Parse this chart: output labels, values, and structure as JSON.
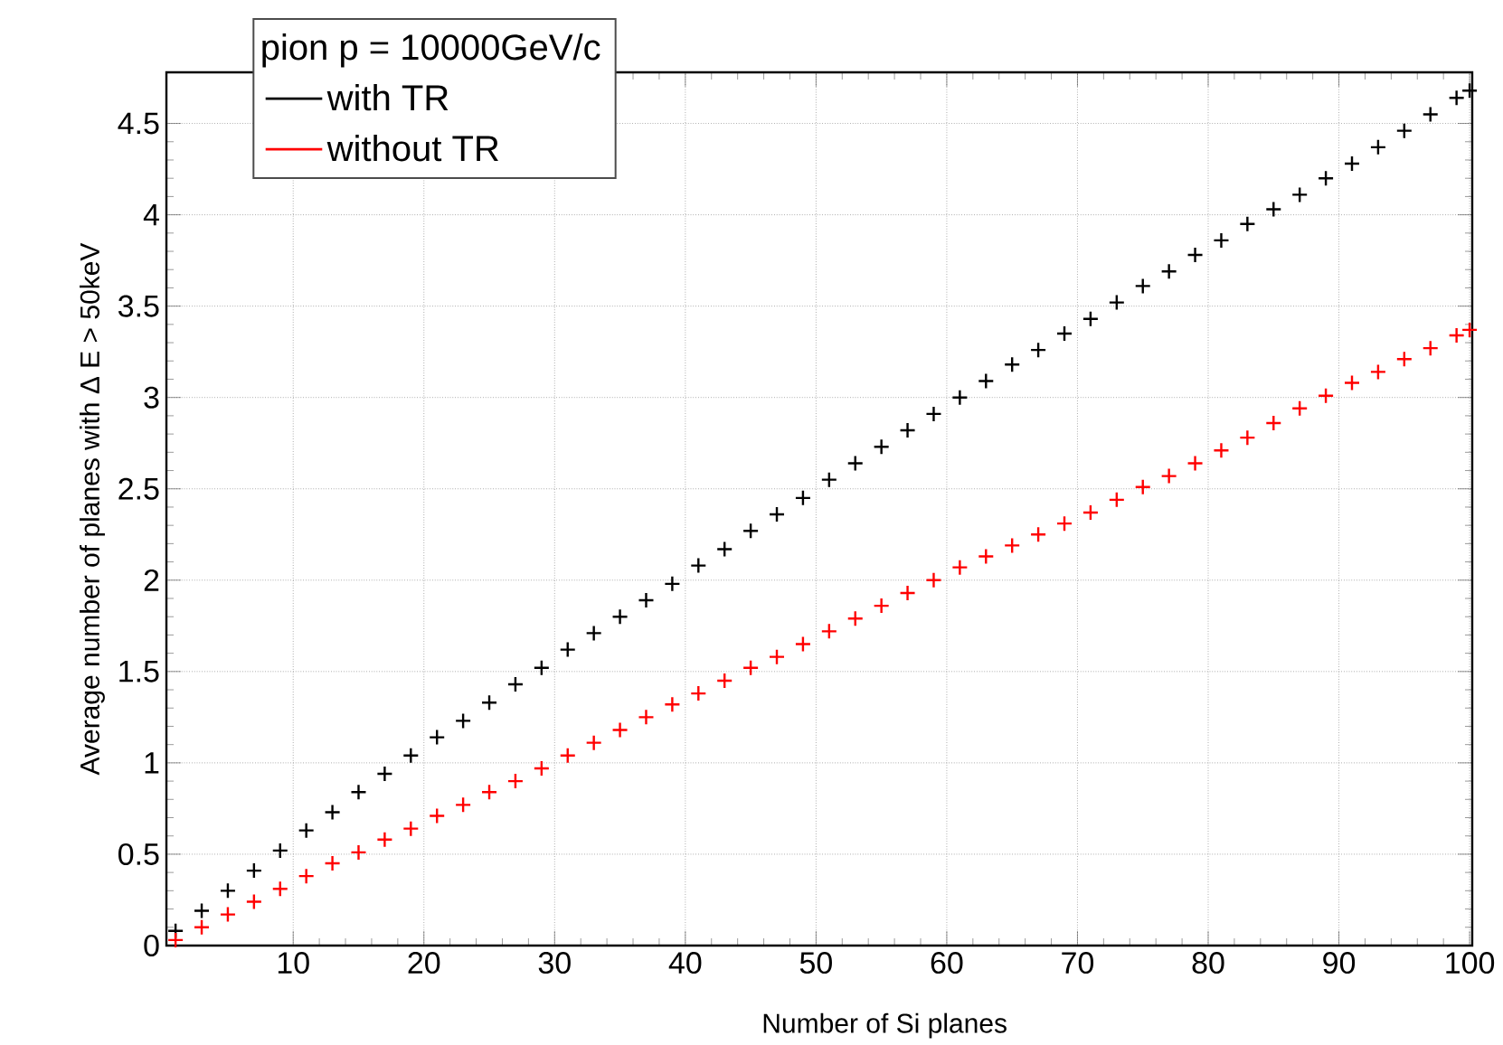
{
  "chart_data": {
    "type": "scatter",
    "xlabel": "Number of Si planes",
    "ylabel": "Average number of planes with   Δ E > 50keV",
    "legend_title": "pion p = 10000GeV/c",
    "x": [
      1,
      3,
      5,
      7,
      9,
      11,
      13,
      15,
      17,
      19,
      21,
      23,
      25,
      27,
      29,
      31,
      33,
      35,
      37,
      39,
      41,
      43,
      45,
      47,
      49,
      51,
      53,
      55,
      57,
      59,
      61,
      63,
      65,
      67,
      69,
      71,
      73,
      75,
      77,
      79,
      81,
      83,
      85,
      87,
      89,
      91,
      93,
      95,
      97,
      99,
      100
    ],
    "series": [
      {
        "name": "with TR",
        "color": "#000000",
        "values": [
          0.08,
          0.19,
          0.3,
          0.41,
          0.52,
          0.63,
          0.73,
          0.84,
          0.94,
          1.04,
          1.14,
          1.23,
          1.33,
          1.43,
          1.52,
          1.62,
          1.71,
          1.8,
          1.89,
          1.98,
          2.08,
          2.17,
          2.27,
          2.36,
          2.45,
          2.55,
          2.64,
          2.73,
          2.82,
          2.91,
          3.0,
          3.09,
          3.18,
          3.26,
          3.35,
          3.43,
          3.52,
          3.61,
          3.69,
          3.78,
          3.86,
          3.95,
          4.03,
          4.11,
          4.2,
          4.28,
          4.37,
          4.46,
          4.55,
          4.64,
          4.68
        ]
      },
      {
        "name": "without TR",
        "color": "#ff0000",
        "values": [
          0.03,
          0.1,
          0.17,
          0.24,
          0.31,
          0.38,
          0.45,
          0.51,
          0.58,
          0.64,
          0.71,
          0.77,
          0.84,
          0.9,
          0.97,
          1.04,
          1.11,
          1.18,
          1.25,
          1.32,
          1.38,
          1.45,
          1.52,
          1.58,
          1.65,
          1.72,
          1.79,
          1.86,
          1.93,
          2.0,
          2.07,
          2.13,
          2.19,
          2.25,
          2.31,
          2.37,
          2.44,
          2.51,
          2.57,
          2.64,
          2.71,
          2.78,
          2.86,
          2.94,
          3.01,
          3.08,
          3.14,
          3.21,
          3.27,
          3.34,
          3.37
        ]
      }
    ],
    "xlim": [
      0.3,
      100.2
    ],
    "ylim": [
      0,
      4.78
    ],
    "xticks": [
      10,
      20,
      30,
      40,
      50,
      60,
      70,
      80,
      90,
      100
    ],
    "yticks": [
      0,
      0.5,
      1,
      1.5,
      2,
      2.5,
      3,
      3.5,
      4,
      4.5
    ],
    "grid": true,
    "legend": "top left",
    "marker": "cross"
  }
}
